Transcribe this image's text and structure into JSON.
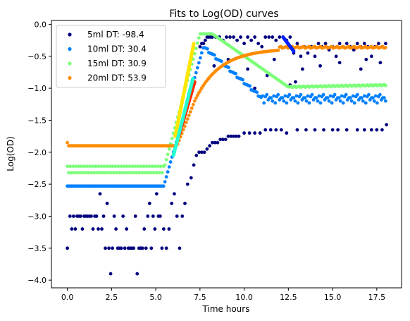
{
  "chart_data": {
    "type": "scatter",
    "title": "Fits to Log(OD) curves",
    "xlabel": "Time hours",
    "ylabel": "Log(OD)",
    "xlim": [
      -0.9,
      18.9
    ],
    "ylim": [
      -4.12,
      0.06
    ],
    "xticks": [
      0.0,
      2.5,
      5.0,
      7.5,
      10.0,
      12.5,
      15.0,
      17.5
    ],
    "xtick_labels": [
      "0.0",
      "2.5",
      "5.0",
      "7.5",
      "10.0",
      "12.5",
      "15.0",
      "17.5"
    ],
    "yticks": [
      0.0,
      -0.5,
      -1.0,
      -1.5,
      -2.0,
      -2.5,
      -3.0,
      -3.5,
      -4.0
    ],
    "ytick_labels": [
      "0.0",
      "−0.5",
      "−1.0",
      "−1.5",
      "−2.0",
      "−2.5",
      "−3.0",
      "−3.5",
      "−4.0"
    ],
    "grid": false,
    "legend_position": "upper-left",
    "series": [
      {
        "name": "5ml DT: -98.4",
        "color": "#00007f",
        "points": [
          [
            0.0,
            -3.5
          ],
          [
            0.15,
            -3.0
          ],
          [
            0.25,
            -3.2
          ],
          [
            0.35,
            -3.0
          ],
          [
            0.45,
            -3.2
          ],
          [
            0.55,
            -3.0
          ],
          [
            0.65,
            -3.0
          ],
          [
            0.75,
            -3.0
          ],
          [
            0.85,
            -3.2
          ],
          [
            0.95,
            -3.0
          ],
          [
            1.05,
            -3.0
          ],
          [
            1.15,
            -3.0
          ],
          [
            1.25,
            -3.0
          ],
          [
            1.35,
            -3.0
          ],
          [
            1.45,
            -3.2
          ],
          [
            1.55,
            -3.0
          ],
          [
            1.65,
            -3.0
          ],
          [
            1.75,
            -3.2
          ],
          [
            1.85,
            -2.65
          ],
          [
            1.95,
            -3.2
          ],
          [
            2.05,
            -3.0
          ],
          [
            2.15,
            -3.5
          ],
          [
            2.25,
            -2.8
          ],
          [
            2.35,
            -3.5
          ],
          [
            2.45,
            -3.9
          ],
          [
            2.55,
            -3.5
          ],
          [
            2.65,
            -3.0
          ],
          [
            2.75,
            -3.2
          ],
          [
            2.85,
            -3.5
          ],
          [
            2.95,
            -3.5
          ],
          [
            3.05,
            -3.5
          ],
          [
            3.15,
            -3.0
          ],
          [
            3.25,
            -3.5
          ],
          [
            3.35,
            -3.2
          ],
          [
            3.45,
            -3.5
          ],
          [
            3.55,
            -3.5
          ],
          [
            3.65,
            -3.5
          ],
          [
            3.75,
            -3.5
          ],
          [
            3.85,
            -3.0
          ],
          [
            3.95,
            -3.9
          ],
          [
            4.05,
            -3.5
          ],
          [
            4.15,
            -3.5
          ],
          [
            4.25,
            -3.5
          ],
          [
            4.35,
            -3.2
          ],
          [
            4.45,
            -3.5
          ],
          [
            4.55,
            -3.0
          ],
          [
            4.65,
            -2.8
          ],
          [
            4.75,
            -3.5
          ],
          [
            4.85,
            -3.0
          ],
          [
            4.95,
            -3.2
          ],
          [
            5.05,
            -2.65
          ],
          [
            5.15,
            -3.0
          ],
          [
            5.25,
            -3.0
          ],
          [
            5.35,
            -3.5
          ],
          [
            5.45,
            -3.2
          ],
          [
            5.6,
            -3.5
          ],
          [
            5.75,
            -3.2
          ],
          [
            5.9,
            -2.8
          ],
          [
            6.05,
            -2.65
          ],
          [
            6.2,
            -3.0
          ],
          [
            6.35,
            -3.5
          ],
          [
            6.5,
            -3.0
          ],
          [
            6.65,
            -2.8
          ],
          [
            6.8,
            -2.5
          ],
          [
            7.0,
            -2.4
          ],
          [
            7.15,
            -2.2
          ],
          [
            7.3,
            -2.05
          ],
          [
            7.45,
            -2.0
          ],
          [
            7.6,
            -2.0
          ],
          [
            7.75,
            -2.0
          ],
          [
            7.9,
            -1.95
          ],
          [
            8.05,
            -1.9
          ],
          [
            8.2,
            -1.85
          ],
          [
            8.35,
            -1.85
          ],
          [
            8.5,
            -1.85
          ],
          [
            8.65,
            -1.8
          ],
          [
            8.8,
            -1.8
          ],
          [
            8.95,
            -1.8
          ],
          [
            9.1,
            -1.75
          ],
          [
            9.25,
            -1.75
          ],
          [
            9.4,
            -1.75
          ],
          [
            9.55,
            -1.75
          ],
          [
            9.7,
            -1.75
          ],
          [
            10.0,
            -1.7
          ],
          [
            10.3,
            -1.7
          ],
          [
            10.6,
            -1.7
          ],
          [
            10.9,
            -1.7
          ],
          [
            11.2,
            -1.65
          ],
          [
            11.5,
            -1.65
          ],
          [
            11.8,
            -1.65
          ],
          [
            12.1,
            -1.65
          ],
          [
            12.4,
            -1.7
          ],
          [
            13.0,
            -1.65
          ],
          [
            13.5,
            -1.65
          ],
          [
            14.0,
            -1.65
          ],
          [
            14.5,
            -1.65
          ],
          [
            15.0,
            -1.65
          ],
          [
            15.3,
            -1.65
          ],
          [
            15.8,
            -1.65
          ],
          [
            16.4,
            -1.65
          ],
          [
            16.8,
            -1.65
          ],
          [
            17.2,
            -1.65
          ],
          [
            17.5,
            -1.65
          ],
          [
            17.8,
            -1.65
          ],
          [
            18.05,
            -1.57
          ],
          [
            7.5,
            -0.35
          ],
          [
            7.6,
            -0.3
          ],
          [
            7.7,
            -0.3
          ],
          [
            7.8,
            -0.25
          ],
          [
            7.9,
            -0.2
          ],
          [
            8.0,
            -0.2
          ],
          [
            8.1,
            -0.2
          ],
          [
            8.2,
            -0.2
          ],
          [
            8.4,
            -0.2
          ],
          [
            8.6,
            -0.2
          ],
          [
            8.8,
            -0.25
          ],
          [
            9.0,
            -0.2
          ],
          [
            9.2,
            -0.2
          ],
          [
            9.4,
            -0.2
          ],
          [
            9.6,
            -0.25
          ],
          [
            9.8,
            -0.2
          ],
          [
            10.0,
            -0.3
          ],
          [
            10.2,
            -0.2
          ],
          [
            10.4,
            -0.25
          ],
          [
            10.6,
            -0.2
          ],
          [
            10.8,
            -0.3
          ],
          [
            11.0,
            -0.35
          ],
          [
            11.2,
            -0.2
          ],
          [
            11.4,
            -0.2
          ],
          [
            11.6,
            -0.2
          ],
          [
            11.8,
            -0.25
          ],
          [
            12.0,
            -0.2
          ],
          [
            12.2,
            -0.2
          ],
          [
            12.4,
            -0.25
          ],
          [
            12.6,
            -0.2
          ],
          [
            12.8,
            -0.45
          ],
          [
            13.0,
            -0.3
          ],
          [
            13.2,
            -0.5
          ],
          [
            13.4,
            -0.35
          ],
          [
            13.6,
            -0.45
          ],
          [
            13.8,
            -0.35
          ],
          [
            14.0,
            -0.5
          ],
          [
            14.2,
            -0.3
          ],
          [
            14.4,
            -0.35
          ],
          [
            14.6,
            -0.3
          ],
          [
            14.8,
            -0.4
          ],
          [
            15.0,
            -0.35
          ],
          [
            15.2,
            -0.5
          ],
          [
            15.4,
            -0.3
          ],
          [
            15.6,
            -0.35
          ],
          [
            15.8,
            -0.3
          ],
          [
            16.0,
            -0.35
          ],
          [
            16.2,
            -0.4
          ],
          [
            16.4,
            -0.3
          ],
          [
            16.6,
            -0.35
          ],
          [
            16.8,
            -0.3
          ],
          [
            17.0,
            -0.35
          ],
          [
            17.2,
            -0.5
          ],
          [
            17.4,
            -0.35
          ],
          [
            17.6,
            -0.3
          ],
          [
            17.8,
            -0.35
          ],
          [
            18.0,
            -0.3
          ],
          [
            9.8,
            -0.85
          ],
          [
            10.6,
            -1.0
          ],
          [
            11.3,
            -0.8
          ],
          [
            12.6,
            -0.95
          ],
          [
            13.3,
            -0.7
          ],
          [
            15.4,
            -0.6
          ],
          [
            16.6,
            -0.7
          ],
          [
            17.7,
            -0.6
          ],
          [
            8.3,
            -0.65
          ],
          [
            9.1,
            -0.55
          ],
          [
            11.7,
            -0.55
          ],
          [
            14.3,
            -0.65
          ],
          [
            16.9,
            -0.55
          ],
          [
            12.9,
            -0.9
          ],
          [
            10.2,
            -0.7
          ]
        ]
      },
      {
        "name": "10ml DT: 30.4",
        "color": "#0080ff",
        "xrange": [
          0.0,
          18.0
        ],
        "step": 0.08,
        "shape": "ten"
      },
      {
        "name": "15ml DT: 30.9",
        "color": "#7cff79",
        "xrange": [
          0.0,
          18.0
        ],
        "step": 0.08,
        "shape": "fifteen"
      },
      {
        "name": "20ml DT: 53.9",
        "color": "#ff8c00",
        "xrange": [
          0.0,
          18.0
        ],
        "step": 0.08,
        "shape": "twenty"
      }
    ],
    "fit_lines": [
      {
        "color": "#ffe600",
        "x": [
          6.1,
          7.15
        ],
        "y": [
          -1.75,
          -0.3
        ]
      },
      {
        "color": "#ff2a00",
        "x": [
          6.3,
          7.2
        ],
        "y": [
          -1.75,
          -0.9
        ]
      },
      {
        "color": "#28ffd0",
        "x": [
          6.0,
          7.1
        ],
        "y": [
          -2.05,
          -0.85
        ]
      },
      {
        "color": "#0020ff",
        "x": [
          12.2,
          12.8
        ],
        "y": [
          -0.2,
          -0.42
        ]
      }
    ]
  }
}
